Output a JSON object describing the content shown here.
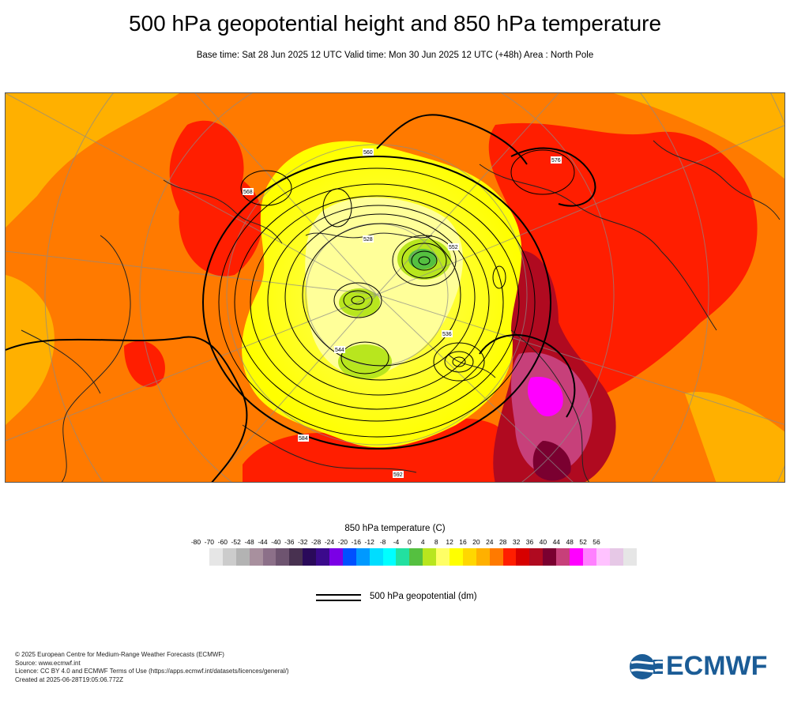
{
  "title": "500 hPa geopotential height and 850 hPa temperature",
  "subtitle": "Base time: Sat 28 Jun 2025 12 UTC Valid time: Mon 30 Jun 2025 12 UTC (+48h) Area : North Pole",
  "map": {
    "projection": "polar-stereographic",
    "area": "North Pole",
    "contour_labels": [
      "528",
      "536",
      "544",
      "552",
      "560",
      "568",
      "576",
      "584",
      "592"
    ]
  },
  "legend": {
    "temperature_title": "850 hPa temperature (C)",
    "ticks": [
      "-80",
      "-70",
      "-60",
      "-52",
      "-48",
      "-44",
      "-40",
      "-36",
      "-32",
      "-28",
      "-24",
      "-20",
      "-16",
      "-12",
      "-8",
      "-4",
      "0",
      "4",
      "8",
      "12",
      "16",
      "20",
      "24",
      "28",
      "32",
      "36",
      "40",
      "44",
      "48",
      "52",
      "56"
    ],
    "colors": [
      "#e6e6e6",
      "#cccccc",
      "#b3b3b3",
      "#a8909e",
      "#8c7089",
      "#6e5470",
      "#483150",
      "#2a0a5a",
      "#3b0a8c",
      "#7b00e6",
      "#0050ff",
      "#0099ff",
      "#00ddff",
      "#00ffff",
      "#22e0a0",
      "#55c040",
      "#b8e61e",
      "#ffff66",
      "#ffff00",
      "#ffd700",
      "#ffb000",
      "#ff7a00",
      "#ff1e00",
      "#d70000",
      "#b00a20",
      "#7a0030",
      "#c7407a",
      "#ff00ff",
      "#ff80ff",
      "#ffc2ff",
      "#e6c8e6",
      "#e6e6e6"
    ],
    "geopotential_label": "500 hPa geopotential (dm)"
  },
  "footer": {
    "line1": "© 2025 European Centre for Medium-Range Weather Forecasts (ECMWF)",
    "line2": "Source: www.ecmwf.int",
    "line3": "Licence: CC BY 4.0 and ECMWF Terms of Use (https://apps.ecmwf.int/datasets/licences/general/)",
    "line4": "Created at 2025-06-28T19:05:06.772Z"
  },
  "logo": {
    "text": "ECMWF",
    "color": "#1b5c96"
  }
}
